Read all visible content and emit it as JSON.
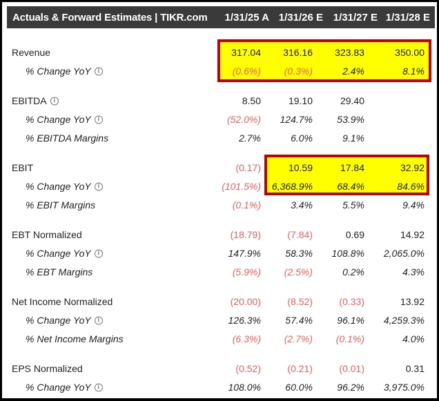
{
  "header": {
    "title": "Actuals & Forward Estimates | TIKR.com",
    "columns": [
      "1/31/25 A",
      "1/31/26 E",
      "1/31/27 E",
      "1/31/28 E"
    ]
  },
  "info_icon_glyph": "i",
  "colors": {
    "header_background": "#3a3a3a",
    "header_text": "#ffffff",
    "body_text": "#1e1e1e",
    "negative_value": "#ec605c",
    "highlight_fill": "#ffff00",
    "highlight_border": "#c00000",
    "page_border": "#000000"
  },
  "highlights": [
    {
      "name": "revenue-highlight",
      "rows": [
        "Revenue",
        "% Change YoY"
      ],
      "columns": [
        "1/31/25 A",
        "1/31/26 E",
        "1/31/27 E",
        "1/31/28 E"
      ]
    },
    {
      "name": "ebit-highlight",
      "rows": [
        "EBIT",
        "% Change YoY"
      ],
      "columns": [
        "1/31/26 E",
        "1/31/27 E",
        "1/31/28 E"
      ]
    }
  ],
  "sections": [
    {
      "name": "revenue",
      "rows": [
        {
          "label": "Revenue",
          "type": "main",
          "info": false,
          "values": [
            "317.04",
            "316.16",
            "323.83",
            "350.00"
          ]
        },
        {
          "label": "% Change YoY",
          "type": "sub",
          "info": true,
          "values": [
            "(0.6%)",
            "(0.3%)",
            "2.4%",
            "8.1%"
          ]
        }
      ]
    },
    {
      "name": "ebitda",
      "rows": [
        {
          "label": "EBITDA",
          "type": "main",
          "info": true,
          "values": [
            "8.50",
            "19.10",
            "29.40",
            ""
          ]
        },
        {
          "label": "% Change YoY",
          "type": "sub",
          "info": true,
          "values": [
            "(52.0%)",
            "124.7%",
            "53.9%",
            ""
          ]
        },
        {
          "label": "% EBITDA Margins",
          "type": "sub",
          "info": false,
          "values": [
            "2.7%",
            "6.0%",
            "9.1%",
            ""
          ]
        }
      ]
    },
    {
      "name": "ebit",
      "rows": [
        {
          "label": "EBIT",
          "type": "main",
          "info": false,
          "values": [
            "(0.17)",
            "10.59",
            "17.84",
            "32.92"
          ]
        },
        {
          "label": "% Change YoY",
          "type": "sub",
          "info": true,
          "values": [
            "(101.5%)",
            "6,368.9%",
            "68.4%",
            "84.6%"
          ]
        },
        {
          "label": "% EBIT Margins",
          "type": "sub",
          "info": false,
          "values": [
            "(0.1%)",
            "3.4%",
            "5.5%",
            "9.4%"
          ]
        }
      ]
    },
    {
      "name": "ebt-normalized",
      "rows": [
        {
          "label": "EBT Normalized",
          "type": "main",
          "info": false,
          "values": [
            "(18.79)",
            "(7.84)",
            "0.69",
            "14.92"
          ]
        },
        {
          "label": "% Change YoY",
          "type": "sub",
          "info": true,
          "values": [
            "147.9%",
            "58.3%",
            "108.8%",
            "2,065.0%"
          ]
        },
        {
          "label": "% EBT Margins",
          "type": "sub",
          "info": false,
          "values": [
            "(5.9%)",
            "(2.5%)",
            "0.2%",
            "4.3%"
          ]
        }
      ]
    },
    {
      "name": "net-income-normalized",
      "rows": [
        {
          "label": "Net Income Normalized",
          "type": "main",
          "info": false,
          "values": [
            "(20.00)",
            "(8.52)",
            "(0.33)",
            "13.92"
          ]
        },
        {
          "label": "% Change YoY",
          "type": "sub",
          "info": true,
          "values": [
            "126.3%",
            "57.4%",
            "96.1%",
            "4,259.3%"
          ]
        },
        {
          "label": "% Net Income Margins",
          "type": "sub",
          "info": false,
          "values": [
            "(6.3%)",
            "(2.7%)",
            "(0.1%)",
            "4.0%"
          ]
        }
      ]
    },
    {
      "name": "eps-normalized",
      "rows": [
        {
          "label": "EPS Normalized",
          "type": "main",
          "info": false,
          "values": [
            "(0.52)",
            "(0.21)",
            "(0.01)",
            "0.31"
          ]
        },
        {
          "label": "% Change YoY",
          "type": "sub",
          "info": true,
          "values": [
            "108.0%",
            "60.0%",
            "96.2%",
            "3,975.0%"
          ]
        }
      ]
    }
  ]
}
